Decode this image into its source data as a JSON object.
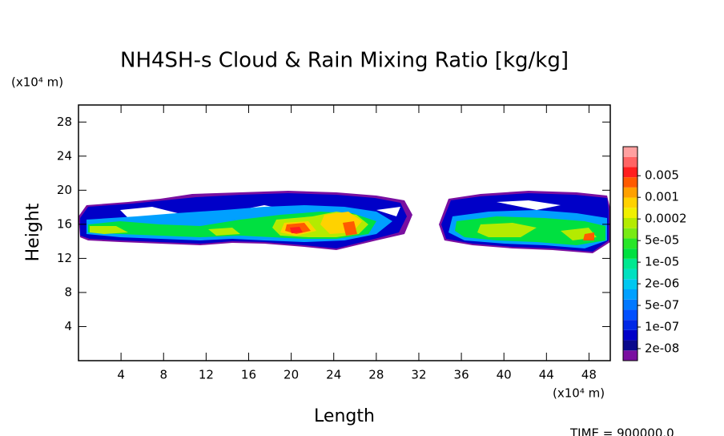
{
  "chart_data": {
    "type": "contour",
    "title": "NH4SH-s Cloud & Rain Mixing Ratio [kg/kg]",
    "xlabel": "Length",
    "ylabel": "Height",
    "x_unit": "(x10⁴ m)",
    "y_unit": "(x10⁴ m)",
    "time": "TIME = 900000.0",
    "xlim": [
      0,
      50
    ],
    "xticks": [
      4,
      8,
      12,
      16,
      20,
      24,
      28,
      32,
      36,
      40,
      44,
      48
    ],
    "ylim": [
      0,
      30
    ],
    "yticks": [
      4,
      8,
      12,
      16,
      20,
      24,
      28
    ],
    "colorbar": {
      "colors": [
        "#7a0fa0",
        "#0a0a8c",
        "#0000c8",
        "#0028e6",
        "#0050ff",
        "#0078ff",
        "#00a0ff",
        "#00c8f0",
        "#00e0c0",
        "#00e890",
        "#00e040",
        "#28e628",
        "#78eb14",
        "#b4eb00",
        "#f0f000",
        "#ffd200",
        "#ffa000",
        "#ff5a00",
        "#ff1e1e",
        "#ff6464",
        "#ffa0a0"
      ],
      "levels": [
        {
          "value": 2e-08,
          "label": "2e-08"
        },
        {
          "value": 1e-07,
          "label": "1e-07"
        },
        {
          "value": 5e-07,
          "label": "5e-07"
        },
        {
          "value": 2e-06,
          "label": "2e-06"
        },
        {
          "value": 1e-05,
          "label": "1e-05"
        },
        {
          "value": 5e-05,
          "label": "5e-05"
        },
        0.0002,
        0.001,
        0.005
      ]
    }
  }
}
